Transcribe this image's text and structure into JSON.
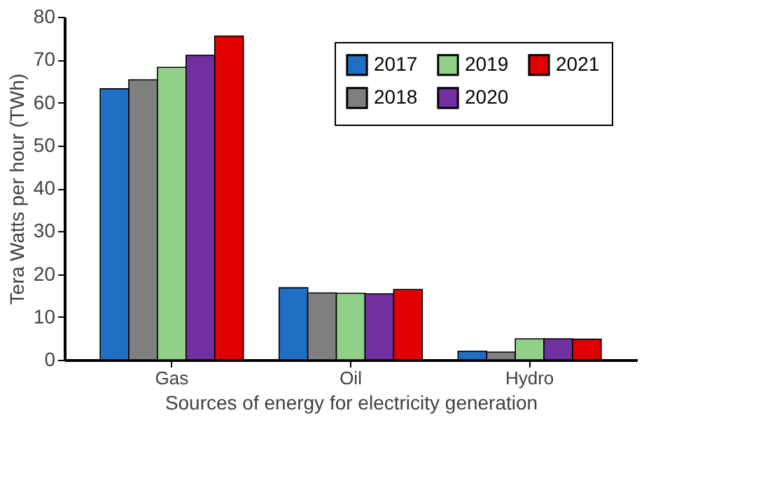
{
  "chart_data": {
    "type": "bar",
    "xlabel": "Sources of energy for electricity generation",
    "ylabel": "Tera Watts per hour (TWh)",
    "categories": [
      "Gas",
      "Oil",
      "Hydro"
    ],
    "series": [
      {
        "name": "2017",
        "color": "#1f6fc5",
        "values": [
          63.2,
          16.8,
          2.0
        ]
      },
      {
        "name": "2018",
        "color": "#7f7f7f",
        "values": [
          65.3,
          15.6,
          1.8
        ]
      },
      {
        "name": "2019",
        "color": "#92d08a",
        "values": [
          68.2,
          15.5,
          4.9
        ]
      },
      {
        "name": "2020",
        "color": "#7030a0",
        "values": [
          71.0,
          15.4,
          4.9
        ]
      },
      {
        "name": "2021",
        "color": "#e00000",
        "values": [
          75.5,
          16.4,
          4.8
        ]
      }
    ],
    "ylim": [
      0,
      80
    ],
    "yticks": [
      0,
      10,
      20,
      30,
      40,
      50,
      60,
      70,
      80
    ],
    "grid": false,
    "legend": "top right"
  }
}
